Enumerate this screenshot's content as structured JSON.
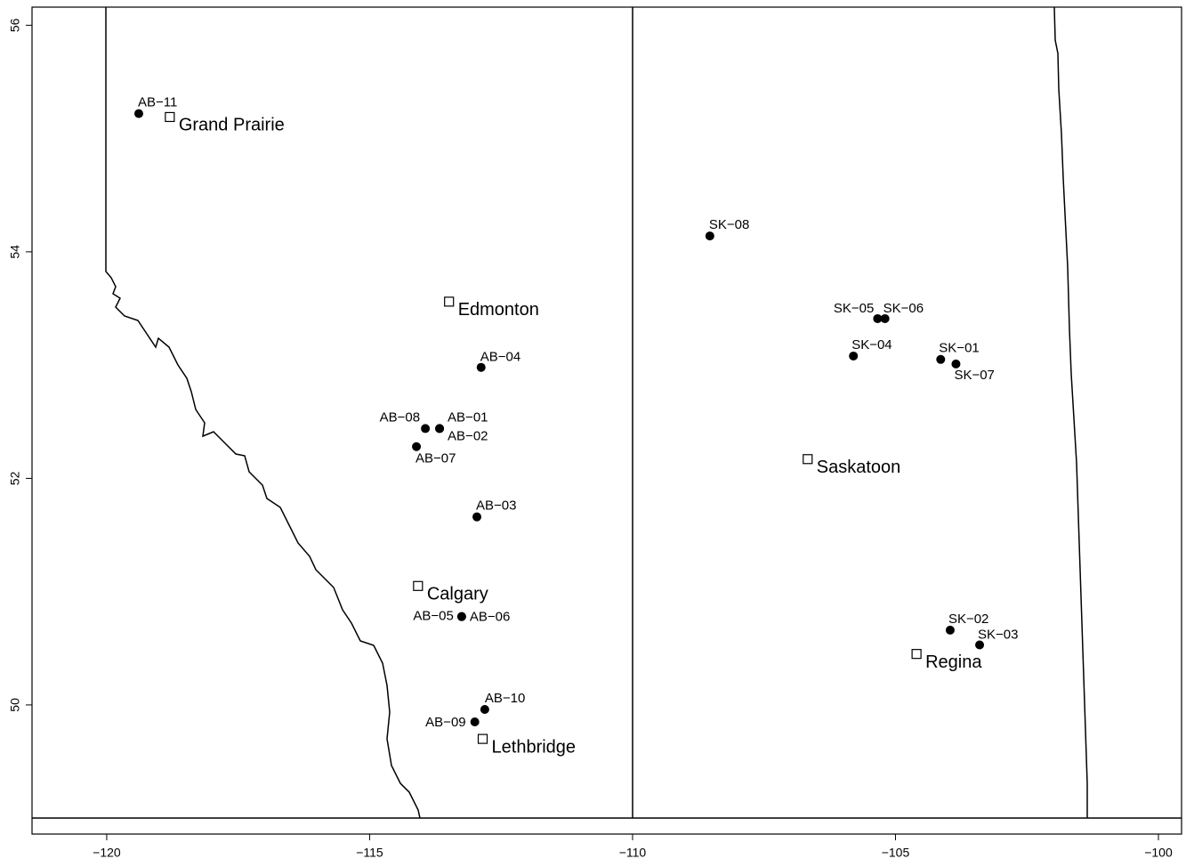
{
  "chart_data": {
    "type": "scatter",
    "xlim": [
      -121.42,
      -99.56
    ],
    "ylim": [
      48.86,
      56.16
    ],
    "xticks": [
      {
        "value": -120,
        "label": "−120"
      },
      {
        "value": -115,
        "label": "−115"
      },
      {
        "value": -110,
        "label": "−110"
      },
      {
        "value": -105,
        "label": "−105"
      },
      {
        "value": -100,
        "label": "−100"
      }
    ],
    "yticks": [
      50,
      52,
      54,
      56
    ],
    "sites": {
      "color": "#000000",
      "labels": [
        "AB−11",
        "AB−08",
        "AB−01",
        "AB−02",
        "AB−07",
        "AB−04",
        "AB−03",
        "AB−05",
        "AB−06",
        "AB−10",
        "AB−09",
        "SK−08",
        "SK−05",
        "SK−06",
        "SK−04",
        "SK−01",
        "SK−07",
        "SK−02",
        "SK−03"
      ],
      "x": [
        -119.39,
        -113.94,
        -113.67,
        -113.67,
        -114.11,
        -112.88,
        -112.96,
        -113.25,
        -113.25,
        -112.81,
        -113.0,
        -108.53,
        -105.34,
        -105.2,
        -105.8,
        -104.14,
        -103.85,
        -103.96,
        -103.4
      ],
      "y": [
        55.22,
        52.44,
        52.44,
        52.44,
        52.28,
        52.98,
        51.66,
        50.78,
        50.78,
        49.96,
        49.85,
        54.14,
        53.41,
        53.41,
        53.08,
        53.05,
        53.01,
        50.66,
        50.53
      ]
    },
    "cities": {
      "labels": [
        "Grand Prairie",
        "Edmonton",
        "Saskatoon",
        "Calgary",
        "Regina",
        "Lethbridge"
      ],
      "x": [
        -118.8,
        -113.49,
        -106.67,
        -114.08,
        -104.6,
        -112.85
      ],
      "y": [
        55.19,
        53.56,
        52.17,
        51.05,
        50.45,
        49.7
      ]
    }
  }
}
